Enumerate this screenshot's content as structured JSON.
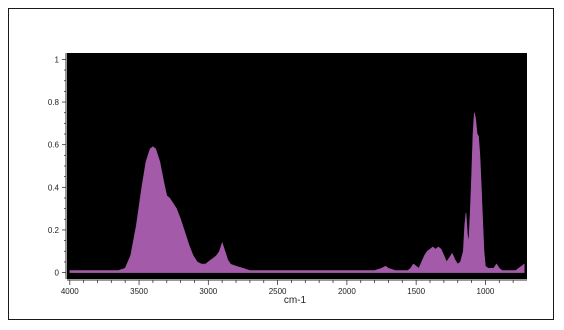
{
  "chart_data": {
    "type": "area",
    "title": "",
    "xlabel": "cm-1",
    "ylabel": "",
    "xlim": [
      4020,
      700
    ],
    "ylim": [
      -0.03,
      1.03
    ],
    "x_reversed": true,
    "grid": false,
    "x_ticks": [
      4000,
      3500,
      3000,
      2500,
      2000,
      1500,
      1000
    ],
    "x_tick_labels": [
      "4000",
      "3500",
      "3000",
      "2500",
      "2000",
      "1500",
      "1000"
    ],
    "y_ticks": [
      0,
      0.2,
      0.4,
      0.6,
      0.8,
      1
    ],
    "y_tick_labels": [
      "0",
      "0.2",
      "0.4",
      "0.6",
      "0.8",
      "1"
    ],
    "colors": {
      "plot_background": "#000000",
      "fill": "#a35aa8",
      "frame": "#1a1a1a",
      "text": "#222222"
    },
    "series": [
      {
        "x": [
          4000,
          3800,
          3650,
          3600,
          3560,
          3520,
          3480,
          3450,
          3420,
          3400,
          3380,
          3350,
          3320,
          3300,
          3280,
          3260,
          3230,
          3200,
          3170,
          3140,
          3110,
          3080,
          3050,
          3020,
          3000,
          2980,
          2960,
          2940,
          2920,
          2900,
          2880,
          2860,
          2840,
          2800,
          2750,
          2700,
          2650,
          2600,
          2500,
          2400,
          2200,
          2000,
          1800,
          1750,
          1720,
          1700,
          1650,
          1600,
          1560,
          1540,
          1520,
          1500,
          1480,
          1460,
          1440,
          1420,
          1400,
          1380,
          1360,
          1340,
          1320,
          1300,
          1280,
          1260,
          1240,
          1220,
          1200,
          1180,
          1160,
          1150,
          1140,
          1130,
          1120,
          1110,
          1100,
          1090,
          1080,
          1070,
          1060,
          1050,
          1040,
          1030,
          1020,
          1010,
          1000,
          980,
          960,
          940,
          920,
          900,
          880,
          860,
          840,
          820,
          800,
          780,
          760,
          740,
          720
        ],
        "y": [
          0.01,
          0.01,
          0.01,
          0.02,
          0.08,
          0.22,
          0.4,
          0.52,
          0.58,
          0.59,
          0.58,
          0.52,
          0.42,
          0.36,
          0.35,
          0.33,
          0.3,
          0.25,
          0.19,
          0.13,
          0.08,
          0.05,
          0.04,
          0.04,
          0.05,
          0.06,
          0.07,
          0.08,
          0.1,
          0.14,
          0.1,
          0.06,
          0.04,
          0.03,
          0.02,
          0.01,
          0.01,
          0.01,
          0.01,
          0.01,
          0.01,
          0.01,
          0.01,
          0.02,
          0.03,
          0.02,
          0.01,
          0.01,
          0.01,
          0.02,
          0.04,
          0.03,
          0.02,
          0.05,
          0.08,
          0.1,
          0.11,
          0.12,
          0.11,
          0.12,
          0.11,
          0.08,
          0.05,
          0.07,
          0.09,
          0.06,
          0.04,
          0.05,
          0.1,
          0.22,
          0.28,
          0.18,
          0.14,
          0.28,
          0.45,
          0.65,
          0.75,
          0.72,
          0.65,
          0.64,
          0.55,
          0.4,
          0.24,
          0.1,
          0.03,
          0.02,
          0.02,
          0.02,
          0.04,
          0.02,
          0.01,
          0.01,
          0.01,
          0.01,
          0.01,
          0.01,
          0.02,
          0.03,
          0.04
        ]
      }
    ]
  }
}
